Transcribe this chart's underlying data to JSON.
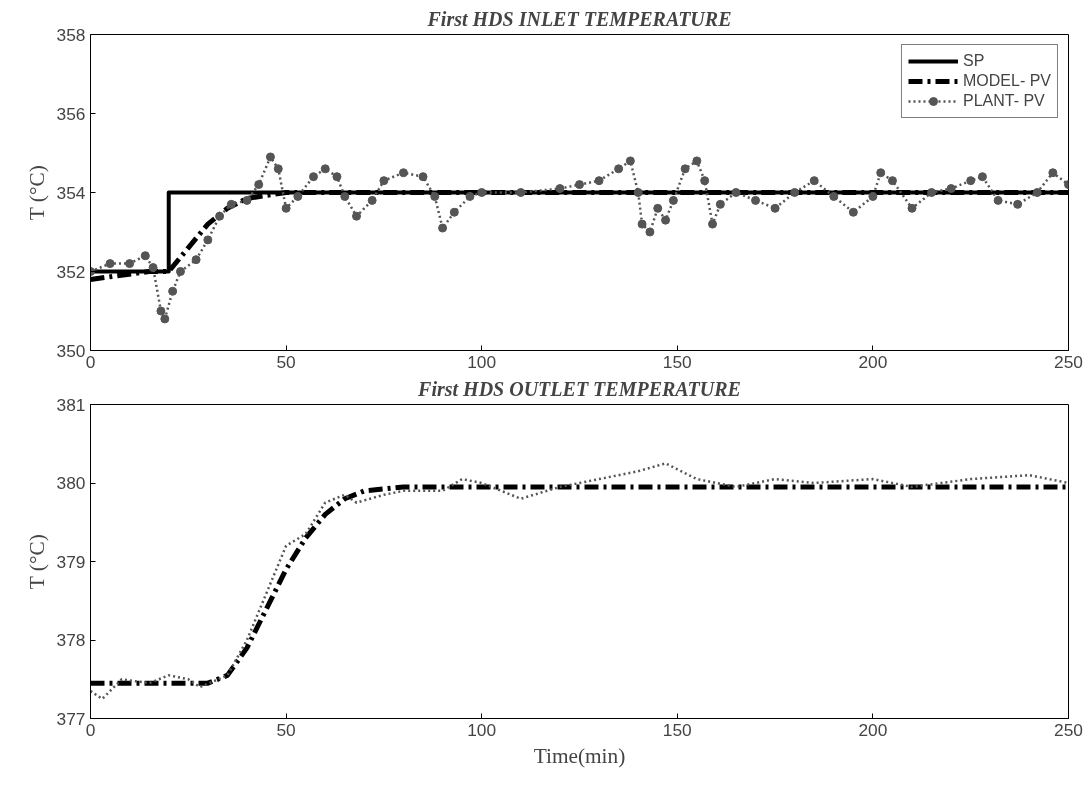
{
  "chart_data": [
    {
      "type": "line",
      "title": "First HDS INLET TEMPERATURE",
      "ylabel": "T (°C)",
      "xlim": [
        0,
        250
      ],
      "ylim": [
        350,
        358
      ],
      "xticks": [
        0,
        50,
        100,
        150,
        200,
        250
      ],
      "yticks": [
        350,
        352,
        354,
        356,
        358
      ],
      "grid": false,
      "legend": "top right",
      "series": [
        {
          "name": "SP",
          "type": "step",
          "color": "#000000",
          "line_style": "solid",
          "marker": "none",
          "x": [
            0,
            20,
            250
          ],
          "values": [
            352,
            354,
            354
          ]
        },
        {
          "name": "MODEL- PV",
          "color": "#000000",
          "line_style": "dashdot",
          "marker": "none",
          "x": [
            0,
            15,
            20,
            25,
            30,
            35,
            40,
            50,
            100,
            150,
            200,
            250
          ],
          "values": [
            351.8,
            352.0,
            352.0,
            352.6,
            353.2,
            353.6,
            353.85,
            354.0,
            354.0,
            354.0,
            354.0,
            354.0
          ]
        },
        {
          "name": "PLANT- PV",
          "color": "#555555",
          "line_style": "dotted",
          "marker": "circle",
          "x": [
            0,
            5,
            10,
            14,
            16,
            18,
            19,
            21,
            23,
            27,
            30,
            33,
            36,
            40,
            43,
            46,
            48,
            50,
            53,
            57,
            60,
            63,
            65,
            68,
            72,
            75,
            80,
            85,
            88,
            90,
            93,
            97,
            100,
            110,
            120,
            125,
            130,
            135,
            138,
            140,
            141,
            143,
            145,
            147,
            149,
            152,
            155,
            157,
            159,
            161,
            165,
            170,
            175,
            180,
            185,
            190,
            195,
            200,
            202,
            205,
            210,
            215,
            220,
            225,
            228,
            232,
            237,
            242,
            246,
            250
          ],
          "values": [
            352.0,
            352.2,
            352.2,
            352.4,
            352.1,
            351.0,
            350.8,
            351.5,
            352.0,
            352.3,
            352.8,
            353.4,
            353.7,
            353.8,
            354.2,
            354.9,
            354.6,
            353.6,
            353.9,
            354.4,
            354.6,
            354.4,
            353.9,
            353.4,
            353.8,
            354.3,
            354.5,
            354.4,
            353.9,
            353.1,
            353.5,
            353.9,
            354.0,
            354.0,
            354.1,
            354.2,
            354.3,
            354.6,
            354.8,
            354.0,
            353.2,
            353.0,
            353.6,
            353.3,
            353.8,
            354.6,
            354.8,
            354.3,
            353.2,
            353.7,
            354.0,
            353.8,
            353.6,
            354.0,
            354.3,
            353.9,
            353.5,
            353.9,
            354.5,
            354.3,
            353.6,
            354.0,
            354.1,
            354.3,
            354.4,
            353.8,
            353.7,
            354.0,
            354.5,
            354.2
          ]
        }
      ]
    },
    {
      "type": "line",
      "title": "First HDS OUTLET TEMPERATURE",
      "xlabel": "Time(min)",
      "ylabel": "T (°C)",
      "xlim": [
        0,
        250
      ],
      "ylim": [
        377,
        381
      ],
      "xticks": [
        0,
        50,
        100,
        150,
        200,
        250
      ],
      "yticks": [
        377,
        378,
        379,
        380,
        381
      ],
      "grid": false,
      "legend": false,
      "series": [
        {
          "color": "#000000",
          "line_style": "dashdot",
          "marker": "none",
          "x": [
            0,
            30,
            35,
            40,
            45,
            50,
            55,
            60,
            65,
            70,
            80,
            100,
            150,
            200,
            250
          ],
          "values": [
            377.45,
            377.45,
            377.55,
            377.9,
            378.4,
            378.9,
            379.3,
            379.6,
            379.8,
            379.9,
            379.95,
            379.95,
            379.95,
            379.95,
            379.95
          ]
        },
        {
          "color": "#555555",
          "line_style": "dotted",
          "marker": "none",
          "x": [
            0,
            3,
            8,
            15,
            20,
            25,
            28,
            35,
            40,
            45,
            50,
            55,
            60,
            65,
            68,
            75,
            80,
            90,
            95,
            100,
            105,
            110,
            120,
            130,
            140,
            147,
            155,
            165,
            175,
            185,
            200,
            210,
            225,
            240,
            250
          ],
          "values": [
            377.35,
            377.25,
            377.5,
            377.45,
            377.55,
            377.5,
            377.4,
            377.55,
            378.0,
            378.6,
            379.2,
            379.35,
            379.75,
            379.85,
            379.75,
            379.85,
            379.9,
            379.9,
            380.05,
            380.0,
            379.9,
            379.8,
            379.95,
            380.05,
            380.15,
            380.25,
            380.05,
            379.95,
            380.05,
            380.0,
            380.05,
            379.95,
            380.05,
            380.1,
            380.0
          ]
        }
      ]
    }
  ]
}
